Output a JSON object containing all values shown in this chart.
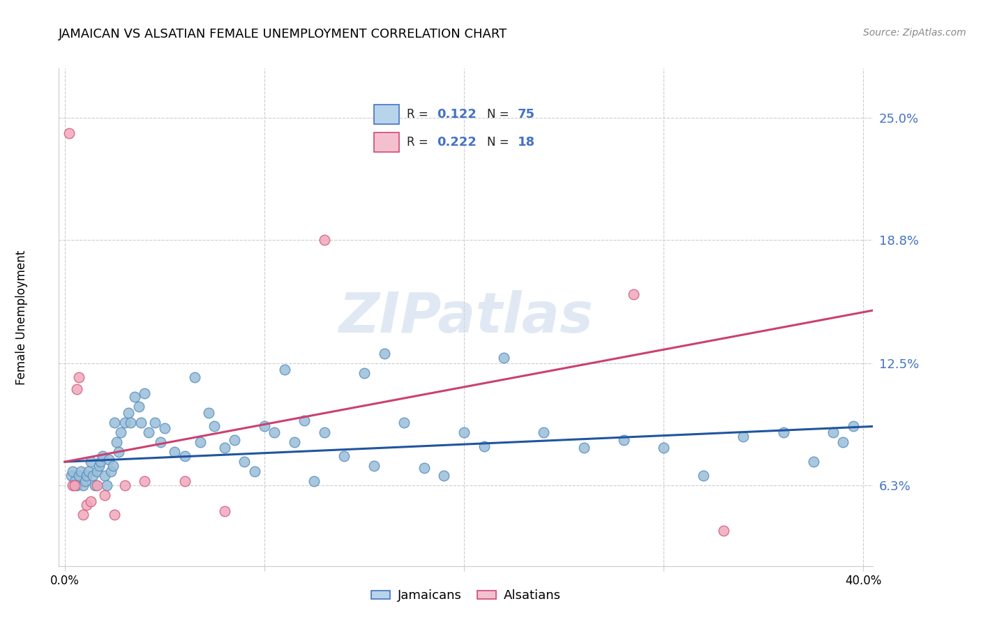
{
  "title": "JAMAICAN VS ALSATIAN FEMALE UNEMPLOYMENT CORRELATION CHART",
  "source": "Source: ZipAtlas.com",
  "ylabel": "Female Unemployment",
  "ytick_values": [
    0.063,
    0.125,
    0.188,
    0.25
  ],
  "ytick_labels": [
    "6.3%",
    "12.5%",
    "18.8%",
    "25.0%"
  ],
  "xlim": [
    -0.003,
    0.405
  ],
  "ylim": [
    0.022,
    0.275
  ],
  "blue_scatter_x": [
    0.003,
    0.004,
    0.005,
    0.006,
    0.007,
    0.008,
    0.009,
    0.01,
    0.011,
    0.012,
    0.013,
    0.014,
    0.015,
    0.016,
    0.017,
    0.018,
    0.019,
    0.02,
    0.021,
    0.022,
    0.023,
    0.024,
    0.025,
    0.026,
    0.027,
    0.028,
    0.03,
    0.032,
    0.033,
    0.035,
    0.037,
    0.038,
    0.04,
    0.042,
    0.045,
    0.048,
    0.05,
    0.055,
    0.06,
    0.065,
    0.068,
    0.072,
    0.075,
    0.08,
    0.085,
    0.09,
    0.095,
    0.1,
    0.105,
    0.11,
    0.115,
    0.12,
    0.125,
    0.13,
    0.14,
    0.15,
    0.155,
    0.16,
    0.17,
    0.18,
    0.19,
    0.2,
    0.21,
    0.22,
    0.24,
    0.26,
    0.28,
    0.3,
    0.32,
    0.34,
    0.36,
    0.375,
    0.385,
    0.39,
    0.395
  ],
  "blue_scatter_y": [
    0.068,
    0.07,
    0.065,
    0.063,
    0.068,
    0.07,
    0.063,
    0.065,
    0.068,
    0.07,
    0.075,
    0.068,
    0.063,
    0.07,
    0.073,
    0.075,
    0.078,
    0.068,
    0.063,
    0.076,
    0.07,
    0.073,
    0.095,
    0.085,
    0.08,
    0.09,
    0.095,
    0.1,
    0.095,
    0.108,
    0.103,
    0.095,
    0.11,
    0.09,
    0.095,
    0.085,
    0.092,
    0.08,
    0.078,
    0.118,
    0.085,
    0.1,
    0.093,
    0.082,
    0.086,
    0.075,
    0.07,
    0.093,
    0.09,
    0.122,
    0.085,
    0.096,
    0.065,
    0.09,
    0.078,
    0.12,
    0.073,
    0.13,
    0.095,
    0.072,
    0.068,
    0.09,
    0.083,
    0.128,
    0.09,
    0.082,
    0.086,
    0.082,
    0.068,
    0.088,
    0.09,
    0.075,
    0.09,
    0.085,
    0.093
  ],
  "pink_scatter_x": [
    0.002,
    0.004,
    0.005,
    0.006,
    0.007,
    0.009,
    0.011,
    0.013,
    0.016,
    0.02,
    0.025,
    0.03,
    0.04,
    0.06,
    0.08,
    0.13,
    0.285,
    0.33
  ],
  "pink_scatter_y": [
    0.242,
    0.063,
    0.063,
    0.112,
    0.118,
    0.048,
    0.053,
    0.055,
    0.063,
    0.058,
    0.048,
    0.063,
    0.065,
    0.065,
    0.05,
    0.188,
    0.16,
    0.04
  ],
  "blue_line_x": [
    0.0,
    0.405
  ],
  "blue_line_y": [
    0.075,
    0.093
  ],
  "pink_line_x": [
    0.0,
    0.405
  ],
  "pink_line_y": [
    0.075,
    0.152
  ],
  "blue_scatter_color": "#9abfd8",
  "blue_edge_color": "#5b8fc4",
  "pink_scatter_color": "#f0a8bc",
  "pink_edge_color": "#d06080",
  "blue_line_color": "#2055a0",
  "pink_line_color": "#cc4070",
  "legend_blue_face": "#b8d4ea",
  "legend_pink_face": "#f4c0d0",
  "legend_blue_edge": "#4472c4",
  "legend_pink_edge": "#d04870",
  "watermark_text": "ZIPatlas",
  "watermark_color": "#c8d8ea",
  "background_color": "#ffffff",
  "grid_color": "#cccccc",
  "tick_label_color": "#4472c4",
  "title_color": "#000000",
  "source_color": "#888888",
  "ylabel_color": "#000000"
}
